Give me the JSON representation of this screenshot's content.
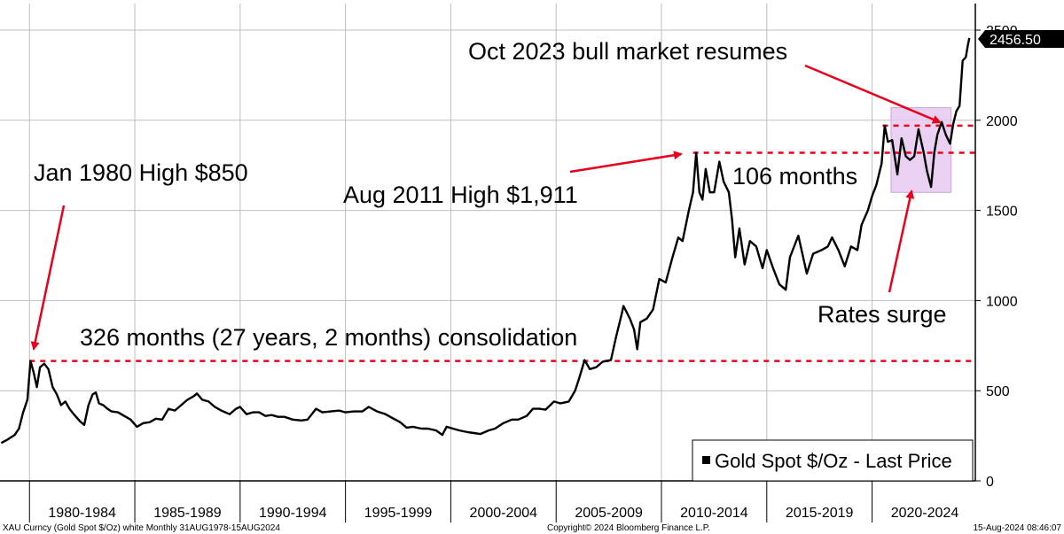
{
  "chart_data": {
    "type": "line",
    "title": "",
    "xlabel": "",
    "ylabel": "",
    "x_start": 1978.6,
    "x_end": 2024.9,
    "ylim": [
      0,
      2500
    ],
    "y_ticks": [
      0,
      500,
      1000,
      1500,
      2000,
      2500
    ],
    "x_ticks": [
      {
        "label": "1980-1984",
        "from": 1980,
        "to": 1985
      },
      {
        "label": "1985-1989",
        "from": 1985,
        "to": 1990
      },
      {
        "label": "1990-1994",
        "from": 1990,
        "to": 1995
      },
      {
        "label": "1995-1999",
        "from": 1995,
        "to": 2000
      },
      {
        "label": "2000-2004",
        "from": 2000,
        "to": 2005
      },
      {
        "label": "2005-2009",
        "from": 2005,
        "to": 2010
      },
      {
        "label": "2010-2014",
        "from": 2010,
        "to": 2015
      },
      {
        "label": "2015-2019",
        "from": 2015,
        "to": 2020
      },
      {
        "label": "2020-2024",
        "from": 2020,
        "to": 2025
      }
    ],
    "grid": true,
    "legend_position": "bottom-right",
    "series": [
      {
        "name": "Gold Spot $/Oz - Last Price",
        "color": "#000000",
        "last_value_label": "2456.50",
        "points": [
          [
            1978.66,
            210
          ],
          [
            1978.9,
            225
          ],
          [
            1979.1,
            240
          ],
          [
            1979.3,
            255
          ],
          [
            1979.5,
            290
          ],
          [
            1979.7,
            380
          ],
          [
            1979.9,
            450
          ],
          [
            1980.05,
            665
          ],
          [
            1980.2,
            600
          ],
          [
            1980.35,
            520
          ],
          [
            1980.5,
            630
          ],
          [
            1980.7,
            650
          ],
          [
            1980.9,
            620
          ],
          [
            1981.1,
            520
          ],
          [
            1981.3,
            480
          ],
          [
            1981.5,
            420
          ],
          [
            1981.7,
            440
          ],
          [
            1981.9,
            400
          ],
          [
            1982.1,
            370
          ],
          [
            1982.4,
            330
          ],
          [
            1982.6,
            310
          ],
          [
            1982.8,
            420
          ],
          [
            1983.0,
            480
          ],
          [
            1983.15,
            490
          ],
          [
            1983.3,
            430
          ],
          [
            1983.5,
            420
          ],
          [
            1983.7,
            400
          ],
          [
            1983.9,
            385
          ],
          [
            1984.2,
            380
          ],
          [
            1984.5,
            360
          ],
          [
            1984.8,
            340
          ],
          [
            1985.1,
            300
          ],
          [
            1985.4,
            320
          ],
          [
            1985.7,
            325
          ],
          [
            1986.0,
            345
          ],
          [
            1986.3,
            340
          ],
          [
            1986.6,
            400
          ],
          [
            1986.9,
            390
          ],
          [
            1987.2,
            420
          ],
          [
            1987.5,
            450
          ],
          [
            1987.8,
            470
          ],
          [
            1987.95,
            485
          ],
          [
            1988.2,
            450
          ],
          [
            1988.5,
            440
          ],
          [
            1988.8,
            410
          ],
          [
            1989.1,
            390
          ],
          [
            1989.5,
            370
          ],
          [
            1989.8,
            400
          ],
          [
            1990.0,
            410
          ],
          [
            1990.3,
            370
          ],
          [
            1990.6,
            380
          ],
          [
            1990.9,
            380
          ],
          [
            1991.2,
            360
          ],
          [
            1991.5,
            365
          ],
          [
            1991.8,
            355
          ],
          [
            1992.1,
            355
          ],
          [
            1992.5,
            340
          ],
          [
            1992.9,
            335
          ],
          [
            1993.2,
            340
          ],
          [
            1993.6,
            400
          ],
          [
            1993.9,
            380
          ],
          [
            1994.3,
            385
          ],
          [
            1994.7,
            390
          ],
          [
            1995.0,
            380
          ],
          [
            1995.4,
            385
          ],
          [
            1995.8,
            385
          ],
          [
            1996.1,
            410
          ],
          [
            1996.5,
            385
          ],
          [
            1996.9,
            370
          ],
          [
            1997.2,
            350
          ],
          [
            1997.6,
            325
          ],
          [
            1997.9,
            295
          ],
          [
            1998.2,
            300
          ],
          [
            1998.6,
            290
          ],
          [
            1998.9,
            290
          ],
          [
            1999.3,
            280
          ],
          [
            1999.6,
            255
          ],
          [
            1999.8,
            300
          ],
          [
            2000.1,
            290
          ],
          [
            2000.4,
            280
          ],
          [
            2000.8,
            270
          ],
          [
            2001.1,
            265
          ],
          [
            2001.4,
            260
          ],
          [
            2001.8,
            280
          ],
          [
            2002.1,
            290
          ],
          [
            2002.5,
            320
          ],
          [
            2002.9,
            340
          ],
          [
            2003.2,
            340
          ],
          [
            2003.6,
            360
          ],
          [
            2003.9,
            400
          ],
          [
            2004.2,
            400
          ],
          [
            2004.5,
            395
          ],
          [
            2004.9,
            440
          ],
          [
            2005.2,
            430
          ],
          [
            2005.6,
            440
          ],
          [
            2005.9,
            500
          ],
          [
            2006.1,
            570
          ],
          [
            2006.35,
            670
          ],
          [
            2006.6,
            620
          ],
          [
            2006.9,
            630
          ],
          [
            2007.2,
            660
          ],
          [
            2007.6,
            670
          ],
          [
            2007.85,
            800
          ],
          [
            2008.1,
            920
          ],
          [
            2008.2,
            970
          ],
          [
            2008.5,
            900
          ],
          [
            2008.7,
            840
          ],
          [
            2008.85,
            730
          ],
          [
            2009.0,
            880
          ],
          [
            2009.3,
            900
          ],
          [
            2009.6,
            950
          ],
          [
            2009.9,
            1120
          ],
          [
            2010.2,
            1100
          ],
          [
            2010.5,
            1230
          ],
          [
            2010.8,
            1350
          ],
          [
            2011.0,
            1330
          ],
          [
            2011.3,
            1500
          ],
          [
            2011.5,
            1600
          ],
          [
            2011.65,
            1820
          ],
          [
            2011.8,
            1600
          ],
          [
            2011.95,
            1560
          ],
          [
            2012.1,
            1730
          ],
          [
            2012.3,
            1600
          ],
          [
            2012.5,
            1600
          ],
          [
            2012.75,
            1770
          ],
          [
            2012.95,
            1660
          ],
          [
            2013.2,
            1600
          ],
          [
            2013.35,
            1450
          ],
          [
            2013.5,
            1240
          ],
          [
            2013.7,
            1400
          ],
          [
            2013.95,
            1200
          ],
          [
            2014.2,
            1330
          ],
          [
            2014.5,
            1300
          ],
          [
            2014.8,
            1180
          ],
          [
            2015.0,
            1280
          ],
          [
            2015.3,
            1180
          ],
          [
            2015.6,
            1090
          ],
          [
            2015.9,
            1060
          ],
          [
            2016.1,
            1240
          ],
          [
            2016.5,
            1360
          ],
          [
            2016.9,
            1150
          ],
          [
            2017.2,
            1260
          ],
          [
            2017.6,
            1280
          ],
          [
            2017.9,
            1300
          ],
          [
            2018.1,
            1350
          ],
          [
            2018.4,
            1280
          ],
          [
            2018.7,
            1190
          ],
          [
            2019.0,
            1300
          ],
          [
            2019.3,
            1280
          ],
          [
            2019.5,
            1420
          ],
          [
            2019.8,
            1500
          ],
          [
            2020.0,
            1580
          ],
          [
            2020.2,
            1640
          ],
          [
            2020.45,
            1760
          ],
          [
            2020.6,
            1970
          ],
          [
            2020.75,
            1880
          ],
          [
            2020.95,
            1890
          ],
          [
            2021.2,
            1700
          ],
          [
            2021.4,
            1900
          ],
          [
            2021.6,
            1800
          ],
          [
            2021.8,
            1780
          ],
          [
            2022.0,
            1800
          ],
          [
            2022.2,
            1950
          ],
          [
            2022.45,
            1820
          ],
          [
            2022.6,
            1720
          ],
          [
            2022.8,
            1630
          ],
          [
            2022.95,
            1820
          ],
          [
            2023.1,
            1920
          ],
          [
            2023.3,
            1990
          ],
          [
            2023.5,
            1920
          ],
          [
            2023.7,
            1870
          ],
          [
            2023.85,
            1980
          ],
          [
            2024.0,
            2050
          ],
          [
            2024.15,
            2080
          ],
          [
            2024.3,
            2330
          ],
          [
            2024.45,
            2350
          ],
          [
            2024.55,
            2420
          ],
          [
            2024.62,
            2456.5
          ]
        ]
      }
    ],
    "reference_lines": [
      {
        "y": 665,
        "from": 1980.0,
        "to": 2024.9,
        "color": "#e8001c"
      },
      {
        "y": 1820,
        "from": 2011.5,
        "to": 2024.9,
        "color": "#e8001c"
      },
      {
        "y": 1970,
        "from": 2020.5,
        "to": 2024.9,
        "color": "#e8001c"
      }
    ],
    "highlight_box": {
      "x0": 2020.9,
      "x1": 2023.75,
      "y0": 1600,
      "y1": 2070,
      "color": "#e6c8ee"
    },
    "annotations": [
      {
        "id": "jan1980",
        "text": "Jan 1980 High $850"
      },
      {
        "id": "aug2011",
        "text": "Aug 2011 High $1,911"
      },
      {
        "id": "months106",
        "text": "106 months"
      },
      {
        "id": "oct2023",
        "text": "Oct 2023 bull market resumes"
      },
      {
        "id": "rates",
        "text": "Rates surge"
      },
      {
        "id": "consolidation",
        "text": "326 months (27 years, 2 months) consolidation"
      }
    ]
  },
  "footer": {
    "left": "XAU Curncy (Gold Spot  $/Oz) white  Monthly 31AUG1978-15AUG2024",
    "center": "Copyright© 2024 Bloomberg Finance L.P.",
    "right": "15-Aug-2024 08:46:07"
  },
  "colors": {
    "line": "#000000",
    "reference": "#e8001c",
    "arrow": "#e8001c",
    "grid": "#bdbdbd",
    "highlight": "#e6c8ee",
    "last_price_bg": "#000000"
  }
}
